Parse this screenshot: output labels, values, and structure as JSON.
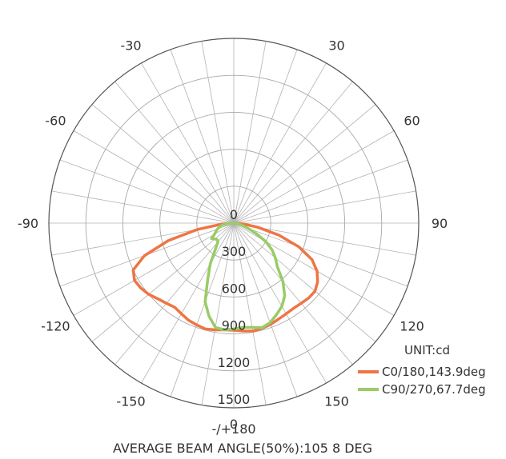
{
  "chart_data": {
    "type": "polar",
    "title": "",
    "unit_label": "UNIT:cd",
    "footer": "AVERAGE BEAM ANGLE(50%):105 8 DEG",
    "radial_max": 1500,
    "ring_ticks": [
      0,
      300,
      600,
      900,
      1200,
      1500
    ],
    "ring_tick_labels": [
      "0",
      "300",
      "600",
      "900",
      "1200",
      "1500"
    ],
    "bottom_zero_label": "0",
    "angle_step_deg": 10,
    "angle_labels": [
      {
        "deg": 180,
        "text": "-/+180"
      },
      {
        "deg": -150,
        "text": "-150"
      },
      {
        "deg": 150,
        "text": "150"
      },
      {
        "deg": -120,
        "text": "-120"
      },
      {
        "deg": 120,
        "text": "120"
      },
      {
        "deg": -90,
        "text": "-90"
      },
      {
        "deg": 90,
        "text": "90"
      },
      {
        "deg": -60,
        "text": "-60"
      },
      {
        "deg": 60,
        "text": "60"
      },
      {
        "deg": -30,
        "text": "-30"
      },
      {
        "deg": 30,
        "text": "30"
      }
    ],
    "grid": true,
    "legend_position": "bottom-right",
    "series": [
      {
        "name": "C0/180,143.9deg",
        "color": "#ee7544",
        "theta": [
          -90,
          -85,
          -80,
          -75,
          -70,
          -65,
          -60,
          -55,
          -50,
          -45,
          -40,
          -35,
          -30,
          -25,
          -20,
          -15,
          -10,
          -5,
          0,
          5,
          10,
          15,
          20,
          25,
          30,
          35,
          40,
          45,
          50,
          55,
          60,
          65,
          70,
          75,
          80,
          85,
          90
        ],
        "r": [
          0,
          100,
          300,
          550,
          770,
          900,
          930,
          920,
          900,
          870,
          850,
          835,
          850,
          870,
          880,
          890,
          880,
          870,
          870,
          880,
          890,
          885,
          875,
          860,
          850,
          845,
          850,
          860,
          860,
          830,
          780,
          700,
          560,
          380,
          200,
          80,
          0
        ]
      },
      {
        "name": "C90/270,67.7deg",
        "color": "#99cc66",
        "theta": [
          -90,
          -85,
          -80,
          -75,
          -70,
          -65,
          -60,
          -55,
          -50,
          -45,
          -40,
          -35,
          -30,
          -25,
          -20,
          -15,
          -10,
          -5,
          0,
          5,
          10,
          15,
          20,
          25,
          30,
          35,
          40,
          45,
          50,
          55,
          60,
          65,
          70,
          75,
          80,
          85,
          90
        ],
        "r": [
          0,
          50,
          100,
          120,
          140,
          160,
          180,
          220,
          200,
          190,
          200,
          260,
          380,
          500,
          680,
          780,
          860,
          870,
          860,
          850,
          860,
          880,
          860,
          820,
          780,
          720,
          620,
          500,
          440,
          380,
          300,
          200,
          120,
          70,
          40,
          15,
          0
        ]
      }
    ]
  }
}
